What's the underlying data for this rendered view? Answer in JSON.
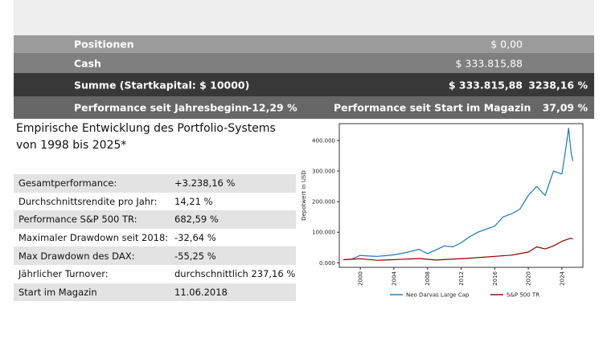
{
  "summary": {
    "positions_label": "Positionen",
    "positions_value": "$ 0,00",
    "cash_label": "Cash",
    "cash_value": "$ 333.815,88",
    "total_label": "Summe (Startkapital: $ 10000)",
    "total_value": "$ 333.815,88",
    "total_pct": "3238,16 %",
    "ytd_label": "Performance seit Jahresbeginn",
    "ytd_value": "-12,29 %",
    "since_start_label": "Performance seit Start im Magazin",
    "since_start_value": "37,09 %"
  },
  "heading": {
    "line1": "Empirische Entwicklung des Portfolio-Systems",
    "line2": "von 1998 bis 2025*"
  },
  "stats": [
    {
      "label": "Gesamtperformance:",
      "value": "+3.238,16 %"
    },
    {
      "label": "Durchschnittsrendite pro Jahr:",
      "value": "14,21 %"
    },
    {
      "label": "Performance S&P 500 TR:",
      "value": "682,59 %"
    },
    {
      "label": "Maximaler Drawdown seit 2018:",
      "value": "-32,64 %"
    },
    {
      "label": "Max Drawdown des DAX:",
      "value": "-55,25 %"
    },
    {
      "label": "Jährlicher Turnover:",
      "value": "durchschnittlich 237,16 %"
    },
    {
      "label": "Start im Magazin",
      "value": "11.06.2018"
    }
  ],
  "chart_data": {
    "type": "line",
    "title": "",
    "xlabel": "",
    "ylabel": "Depotwert in USD",
    "xlim": [
      1997.5,
      2026.5
    ],
    "ylim": [
      -15000,
      455000
    ],
    "x_ticks": [
      2000,
      2004,
      2008,
      2012,
      2016,
      2020,
      2024
    ],
    "y_ticks": [
      0,
      100000,
      200000,
      300000,
      400000
    ],
    "y_tick_labels": [
      "0.000",
      "100.000",
      "200.000",
      "300.000",
      "400.000"
    ],
    "grid": false,
    "legend_position": "bottom",
    "series": [
      {
        "name": "Neo Darvas Large Cap",
        "color": "#1f77b4",
        "x": [
          1998,
          1999,
          2000,
          2001,
          2002,
          2003,
          2004,
          2005,
          2006,
          2007,
          2008,
          2009,
          2010,
          2011,
          2012,
          2013,
          2014,
          2015,
          2016,
          2017,
          2018,
          2019,
          2020,
          2021,
          2022,
          2023,
          2024,
          2024.5,
          2024.8,
          2025.1,
          2025.3
        ],
        "y": [
          10000,
          12000,
          24000,
          22000,
          21000,
          23000,
          26000,
          31000,
          37000,
          44000,
          30000,
          42000,
          55000,
          52000,
          65000,
          85000,
          100000,
          110000,
          120000,
          150000,
          160000,
          175000,
          220000,
          250000,
          220000,
          300000,
          290000,
          380000,
          440000,
          360000,
          333000
        ]
      },
      {
        "name": "S&P 500 TR",
        "color": "#8b0000",
        "x": [
          1998,
          2000,
          2002,
          2003,
          2007,
          2009,
          2013,
          2018,
          2019,
          2020,
          2021,
          2022,
          2023,
          2024,
          2025,
          2025.3
        ],
        "y": [
          10000,
          13000,
          8000,
          9000,
          14000,
          9000,
          15000,
          25000,
          30000,
          35000,
          52000,
          45000,
          55000,
          70000,
          80000,
          78000
        ]
      }
    ]
  }
}
